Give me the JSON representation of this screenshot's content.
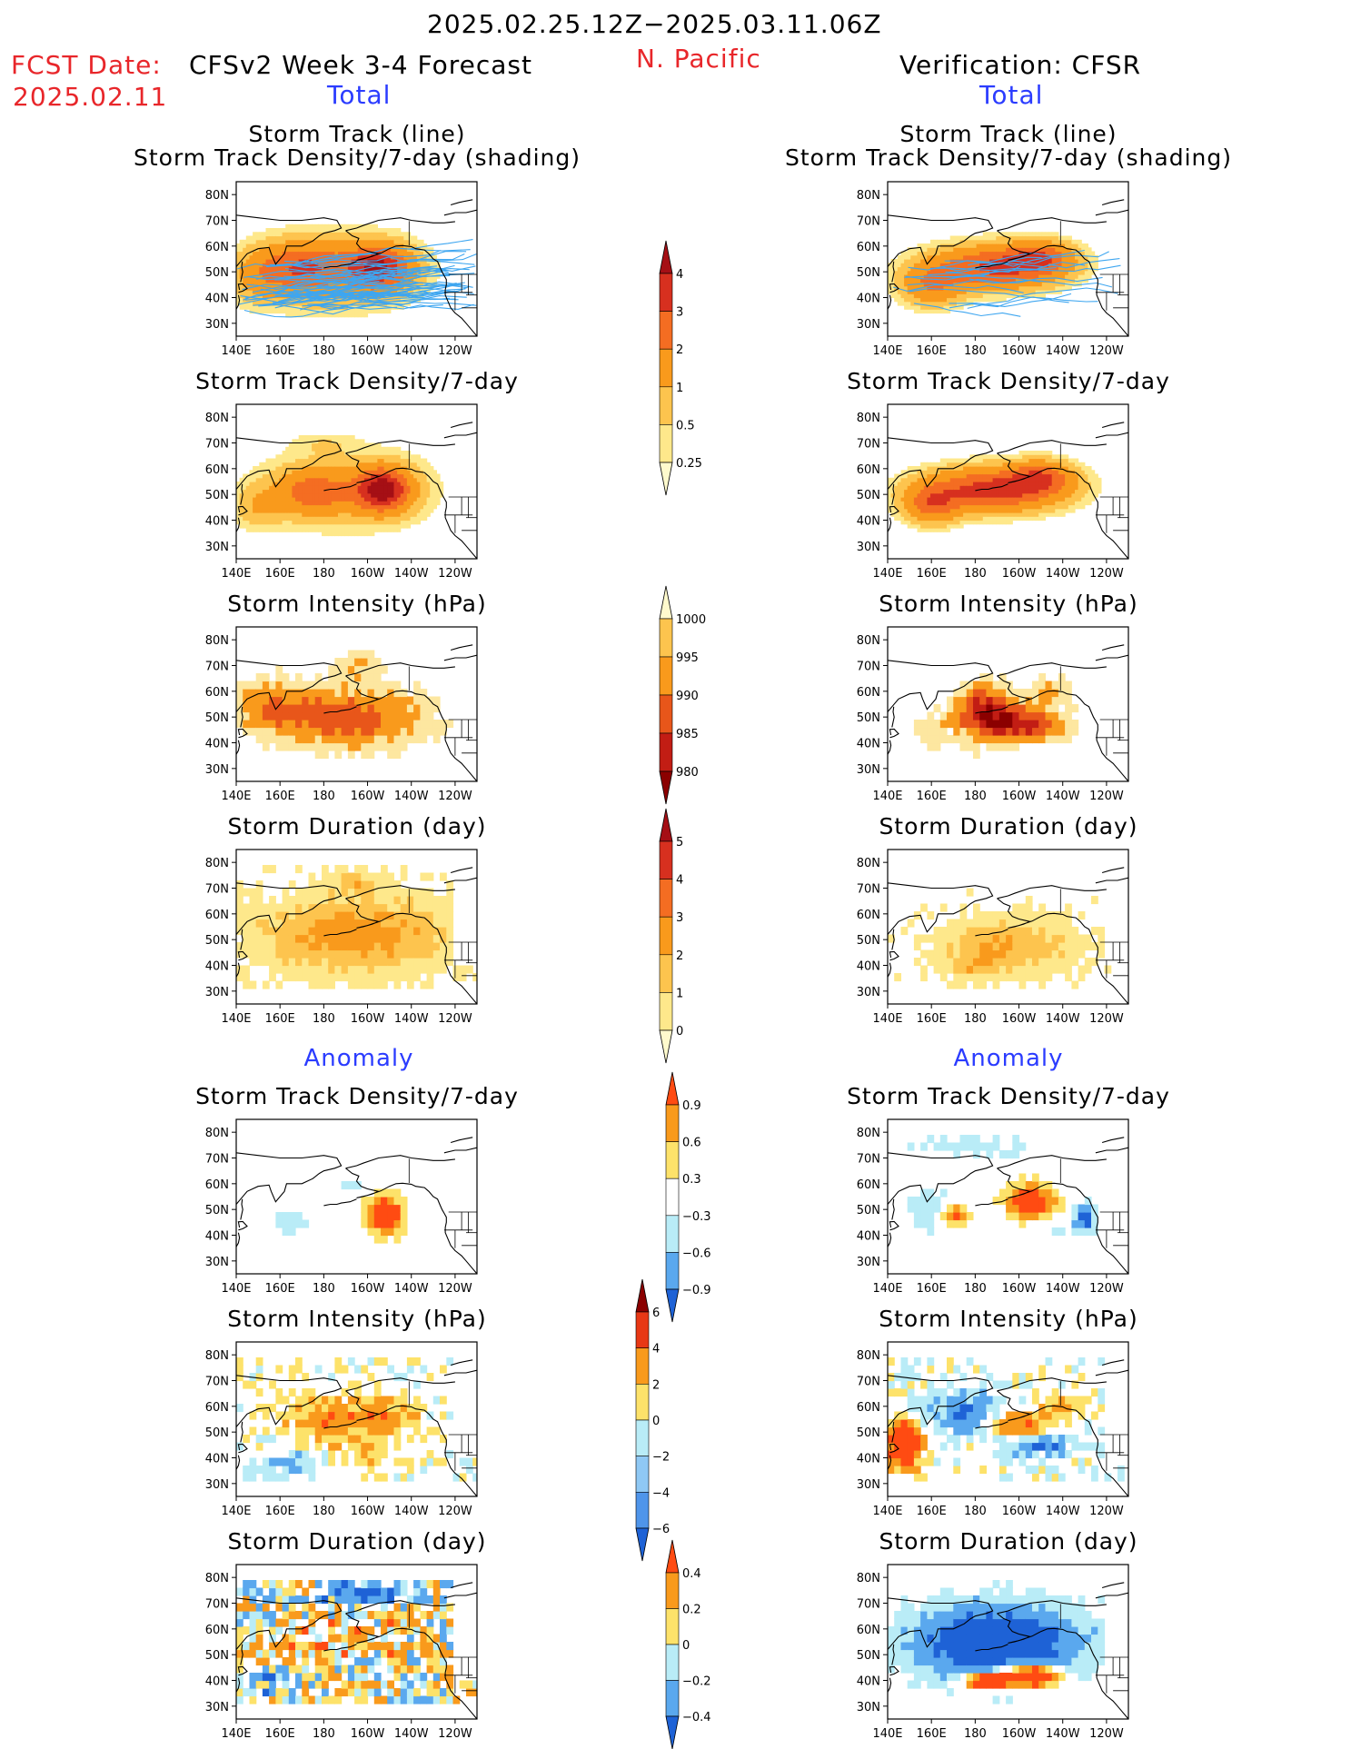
{
  "header": {
    "period": "2025.02.25.12Z−2025.03.11.06Z",
    "fcst_label": "FCST Date:",
    "fcst_date": "2025.02.11",
    "left_title": "CFSv2 Week 3-4 Forecast",
    "region": "N. Pacific",
    "right_title": "Verification: CFSR",
    "left_sub": "Total",
    "right_sub": "Total"
  },
  "sections": {
    "anomaly_left": "Anomaly",
    "anomaly_right": "Anomaly"
  },
  "axes": {
    "lat_ticks": [
      "80N",
      "70N",
      "60N",
      "50N",
      "40N",
      "30N"
    ],
    "lon_ticks": [
      "140E",
      "160E",
      "180",
      "160W",
      "140W",
      "120W"
    ]
  },
  "panels": {
    "l1": {
      "title1": "Storm Track (line)",
      "title2": "Storm Track Density/7-day (shading)"
    },
    "r1": {
      "title1": "Storm Track (line)",
      "title2": "Storm Track Density/7-day (shading)"
    },
    "l2": {
      "title1": "Storm Track Density/7-day"
    },
    "r2": {
      "title1": "Storm Track Density/7-day"
    },
    "l3": {
      "title1": "Storm Intensity (hPa)"
    },
    "r3": {
      "title1": "Storm Intensity (hPa)"
    },
    "l4": {
      "title1": "Storm Duration (day)"
    },
    "r4": {
      "title1": "Storm Duration (day)"
    },
    "l5": {
      "title1": "Storm Track Density/7-day"
    },
    "r5": {
      "title1": "Storm Track Density/7-day"
    },
    "l6": {
      "title1": "Storm Intensity (hPa)"
    },
    "r6": {
      "title1": "Storm Intensity (hPa)"
    },
    "l7": {
      "title1": "Storm Duration (day)"
    },
    "r7": {
      "title1": "Storm Duration (day)"
    }
  },
  "colorbars": {
    "density": {
      "labels": [
        "4",
        "3",
        "2",
        "1",
        "0.5",
        "0.25"
      ],
      "colors": [
        "#a50f15",
        "#d7301f",
        "#f46d22",
        "#f99a1c",
        "#fdc44e",
        "#fee88b",
        "#fffacd"
      ]
    },
    "intensity": {
      "labels": [
        "1000",
        "995",
        "990",
        "985",
        "980"
      ],
      "colors": [
        "#fffacd",
        "#fdc44e",
        "#f99a1c",
        "#e8561a",
        "#c21d14",
        "#8b0000"
      ]
    },
    "duration": {
      "labels": [
        "5",
        "4",
        "3",
        "2",
        "1",
        "0"
      ],
      "colors": [
        "#a50f15",
        "#d7301f",
        "#f46d22",
        "#f99a1c",
        "#fdc44e",
        "#fee88b",
        "#fffacd"
      ]
    },
    "anom_density": {
      "labels": [
        "0.9",
        "0.6",
        "0.3",
        "−0.3",
        "−0.6",
        "−0.9"
      ],
      "colors": [
        "#ff4b12",
        "#f99a1c",
        "#fde26a",
        "#ffffff",
        "#b9ecf7",
        "#5aa8ee",
        "#1e62d6"
      ]
    },
    "anom_intensity": {
      "labels": [
        "6",
        "4",
        "2",
        "0",
        "−2",
        "−4",
        "−6"
      ],
      "colors": [
        "#8b0000",
        "#e83815",
        "#f99a1c",
        "#fde26a",
        "#b9ecf7",
        "#8fc8f4",
        "#4f95ea",
        "#1e62d6"
      ]
    },
    "anom_duration": {
      "labels": [
        "0.4",
        "0.2",
        "0",
        "−0.2",
        "−0.4"
      ],
      "colors": [
        "#ff4b12",
        "#f99a1c",
        "#fde26a",
        "#b9ecf7",
        "#5aa8ee",
        "#1e62d6"
      ]
    }
  }
}
